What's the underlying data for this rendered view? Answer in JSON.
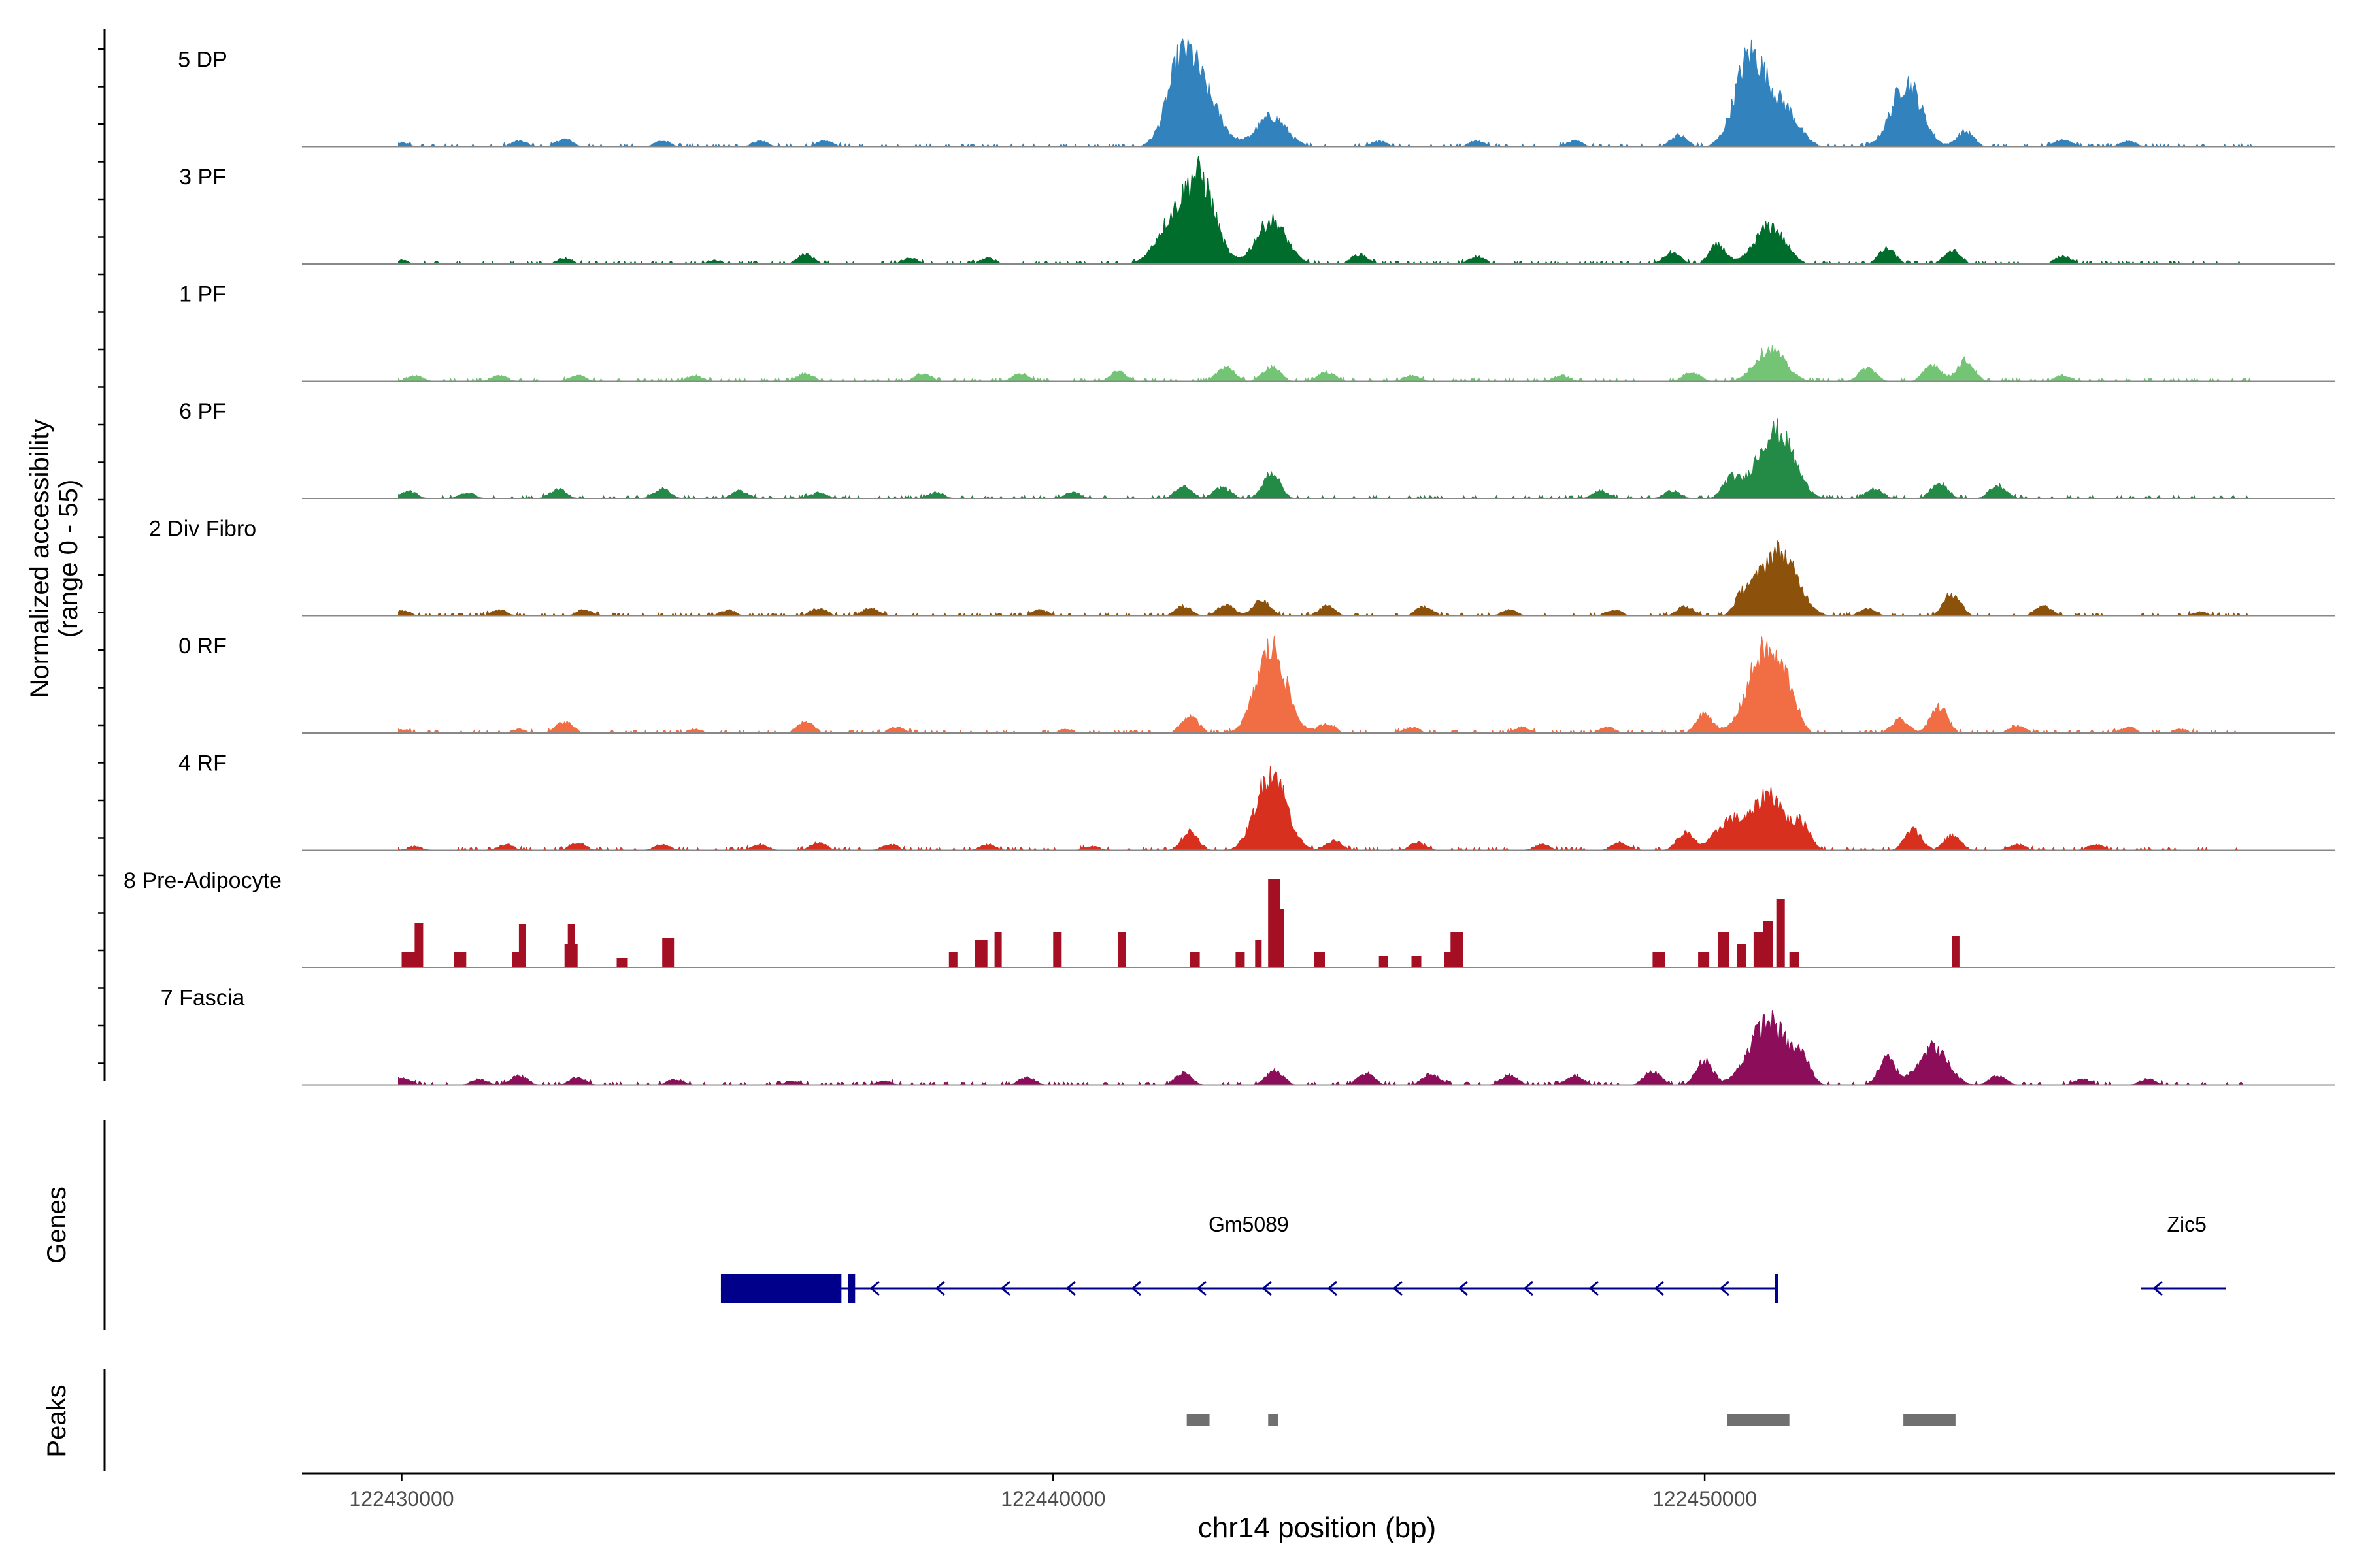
{
  "chart_data": {
    "type": "area",
    "title": "",
    "chromosome": "chr14",
    "xlabel": "chr14 position (bp)",
    "ylabel_line1": "Normalized accessibility",
    "ylabel_line2": "(range 0 - 55)",
    "y_range": [
      0,
      55
    ],
    "xlim": [
      122428470,
      122459670
    ],
    "x_ticks": [
      {
        "value": 122430000,
        "label": "122430000"
      },
      {
        "value": 122440000,
        "label": "122440000"
      },
      {
        "value": 122450000,
        "label": "122450000"
      }
    ],
    "tracks": [
      {
        "name": "5 DP",
        "color": "#3182bd",
        "peaks": [
          [
            122430000,
            2
          ],
          [
            122431800,
            3
          ],
          [
            122432500,
            4
          ],
          [
            122434000,
            3
          ],
          [
            122435500,
            3
          ],
          [
            122436500,
            3
          ],
          [
            122442000,
            48
          ],
          [
            122442400,
            18
          ],
          [
            122443350,
            16
          ],
          [
            122445000,
            3
          ],
          [
            122446500,
            3
          ],
          [
            122448000,
            3
          ],
          [
            122449600,
            6
          ],
          [
            122450700,
            48
          ],
          [
            122451200,
            20
          ],
          [
            122453100,
            34
          ],
          [
            122454000,
            8
          ],
          [
            122455500,
            4
          ],
          [
            122456500,
            3
          ]
        ]
      },
      {
        "name": "3 PF",
        "color": "#006d2c",
        "peaks": [
          [
            122430000,
            2
          ],
          [
            122432500,
            3
          ],
          [
            122434800,
            2
          ],
          [
            122436200,
            5
          ],
          [
            122437800,
            3
          ],
          [
            122439000,
            3
          ],
          [
            122441800,
            20
          ],
          [
            122442250,
            45
          ],
          [
            122443350,
            23
          ],
          [
            122444700,
            5
          ],
          [
            122446500,
            4
          ],
          [
            122449500,
            6
          ],
          [
            122450200,
            10
          ],
          [
            122451000,
            20
          ],
          [
            122452800,
            8
          ],
          [
            122453800,
            7
          ],
          [
            122455500,
            4
          ]
        ]
      },
      {
        "name": "1 PF",
        "color": "#74c476",
        "peaks": [
          [
            122430200,
            3
          ],
          [
            122431500,
            3
          ],
          [
            122432700,
            3
          ],
          [
            122434500,
            3
          ],
          [
            122436200,
            4
          ],
          [
            122438000,
            4
          ],
          [
            122439500,
            4
          ],
          [
            122441000,
            5
          ],
          [
            122442650,
            8
          ],
          [
            122443350,
            8
          ],
          [
            122444200,
            5
          ],
          [
            122445500,
            3
          ],
          [
            122447800,
            3
          ],
          [
            122449800,
            5
          ],
          [
            122451000,
            17
          ],
          [
            122452500,
            7
          ],
          [
            122453500,
            9
          ],
          [
            122454000,
            11
          ],
          [
            122455500,
            3
          ]
        ]
      },
      {
        "name": "6 PF",
        "color": "#238b45",
        "peaks": [
          [
            122430100,
            4
          ],
          [
            122431000,
            3
          ],
          [
            122432400,
            5
          ],
          [
            122434000,
            5
          ],
          [
            122435200,
            4
          ],
          [
            122436400,
            3
          ],
          [
            122438200,
            3
          ],
          [
            122440300,
            3
          ],
          [
            122442000,
            6
          ],
          [
            122442600,
            6
          ],
          [
            122443350,
            14
          ],
          [
            122448400,
            4
          ],
          [
            122449500,
            4
          ],
          [
            122450400,
            10
          ],
          [
            122450900,
            18
          ],
          [
            122451200,
            26
          ],
          [
            122452600,
            5
          ],
          [
            122453600,
            8
          ],
          [
            122454500,
            7
          ]
        ]
      },
      {
        "name": "2 Div Fibro",
        "color": "#8c510a",
        "peaks": [
          [
            122430000,
            3
          ],
          [
            122431500,
            3
          ],
          [
            122432800,
            3
          ],
          [
            122435000,
            3
          ],
          [
            122436400,
            4
          ],
          [
            122437200,
            4
          ],
          [
            122439800,
            3
          ],
          [
            122442000,
            5
          ],
          [
            122442650,
            6
          ],
          [
            122443200,
            8
          ],
          [
            122444200,
            5
          ],
          [
            122445700,
            5
          ],
          [
            122447000,
            3
          ],
          [
            122448600,
            3
          ],
          [
            122449700,
            5
          ],
          [
            122450600,
            10
          ],
          [
            122451000,
            24
          ],
          [
            122451300,
            18
          ],
          [
            122452500,
            4
          ],
          [
            122453800,
            12
          ],
          [
            122455200,
            5
          ],
          [
            122457600,
            2
          ]
        ]
      },
      {
        "name": "0 RF",
        "color": "#f16d43",
        "peaks": [
          [
            122430000,
            2
          ],
          [
            122431800,
            2
          ],
          [
            122432500,
            6
          ],
          [
            122434500,
            2
          ],
          [
            122436200,
            6
          ],
          [
            122437600,
            3
          ],
          [
            122440200,
            2
          ],
          [
            122442100,
            9
          ],
          [
            122443350,
            45
          ],
          [
            122444200,
            5
          ],
          [
            122445500,
            3
          ],
          [
            122447200,
            3
          ],
          [
            122448500,
            3
          ],
          [
            122450000,
            10
          ],
          [
            122450800,
            20
          ],
          [
            122451000,
            28
          ],
          [
            122451300,
            15
          ],
          [
            122453000,
            7
          ],
          [
            122453600,
            14
          ],
          [
            122454800,
            4
          ],
          [
            122456500,
            3
          ],
          [
            122457300,
            2
          ]
        ]
      },
      {
        "name": "4 RF",
        "color": "#d7301f",
        "peaks": [
          [
            122430200,
            2
          ],
          [
            122431600,
            3
          ],
          [
            122432700,
            4
          ],
          [
            122434000,
            3
          ],
          [
            122435500,
            3
          ],
          [
            122436400,
            4
          ],
          [
            122437500,
            3
          ],
          [
            122439000,
            3
          ],
          [
            122440600,
            2
          ],
          [
            122442100,
            10
          ],
          [
            122443350,
            42
          ],
          [
            122444300,
            5
          ],
          [
            122445600,
            4
          ],
          [
            122447500,
            3
          ],
          [
            122448700,
            4
          ],
          [
            122449700,
            9
          ],
          [
            122450400,
            16
          ],
          [
            122451000,
            30
          ],
          [
            122451500,
            13
          ],
          [
            122453200,
            11
          ],
          [
            122453800,
            8
          ],
          [
            122454800,
            3
          ],
          [
            122456000,
            3
          ]
        ]
      },
      {
        "name": "8 Pre-Adipocyte",
        "color": "#a50f24",
        "bars": [
          [
            122430000,
            8
          ],
          [
            122430200,
            23
          ],
          [
            122430800,
            8
          ],
          [
            122431700,
            8
          ],
          [
            122431800,
            22
          ],
          [
            122432500,
            12
          ],
          [
            122432550,
            22
          ],
          [
            122433300,
            5
          ],
          [
            122434000,
            15
          ],
          [
            122438400,
            8
          ],
          [
            122438800,
            14
          ],
          [
            122439100,
            18
          ],
          [
            122440000,
            18
          ],
          [
            122441000,
            18
          ],
          [
            122442100,
            8
          ],
          [
            122442800,
            8
          ],
          [
            122443100,
            14
          ],
          [
            122443300,
            45
          ],
          [
            122443400,
            30
          ],
          [
            122444000,
            8
          ],
          [
            122445000,
            6
          ],
          [
            122445500,
            6
          ],
          [
            122446000,
            8
          ],
          [
            122446100,
            18
          ],
          [
            122449200,
            8
          ],
          [
            122449900,
            8
          ],
          [
            122450200,
            18
          ],
          [
            122450500,
            12
          ],
          [
            122450750,
            18
          ],
          [
            122450900,
            24
          ],
          [
            122451100,
            35
          ],
          [
            122451300,
            8
          ],
          [
            122453800,
            16
          ]
        ]
      },
      {
        "name": "7 Fascia",
        "color": "#8c0e5a",
        "peaks": [
          [
            122430000,
            4
          ],
          [
            122431200,
            3
          ],
          [
            122431800,
            5
          ],
          [
            122432700,
            4
          ],
          [
            122434200,
            3
          ],
          [
            122436000,
            2
          ],
          [
            122437400,
            2
          ],
          [
            122439600,
            4
          ],
          [
            122442000,
            6
          ],
          [
            122443400,
            8
          ],
          [
            122444800,
            6
          ],
          [
            122445800,
            6
          ],
          [
            122447000,
            5
          ],
          [
            122448000,
            5
          ],
          [
            122449200,
            7
          ],
          [
            122450000,
            13
          ],
          [
            122450800,
            18
          ],
          [
            122451100,
            24
          ],
          [
            122451500,
            12
          ],
          [
            122452800,
            14
          ],
          [
            122453500,
            20
          ],
          [
            122454500,
            5
          ],
          [
            122455800,
            3
          ],
          [
            122456800,
            3
          ]
        ]
      }
    ],
    "genes": [
      {
        "name": "Gm5089",
        "strand": "-",
        "start": 122434900,
        "end": 122451100,
        "exons": [
          [
            122434900,
            122436750
          ],
          [
            122436850,
            122436960
          ]
        ],
        "label_pos": 122443000
      },
      {
        "name": "Zic5",
        "strand": "-",
        "start": 122456700,
        "end": 122458000,
        "exons": [],
        "label_pos": 122457400
      }
    ],
    "peaks_track": [
      [
        122442050,
        122442400
      ],
      [
        122443300,
        122443450
      ],
      [
        122450350,
        122451300
      ],
      [
        122453050,
        122453850
      ]
    ],
    "panel_labels": {
      "genes": "Genes",
      "peaks": "Peaks"
    },
    "colors": {
      "gene": "#00008b",
      "peak": "#707070",
      "axis": "#000000",
      "baseline": "#888888"
    }
  }
}
